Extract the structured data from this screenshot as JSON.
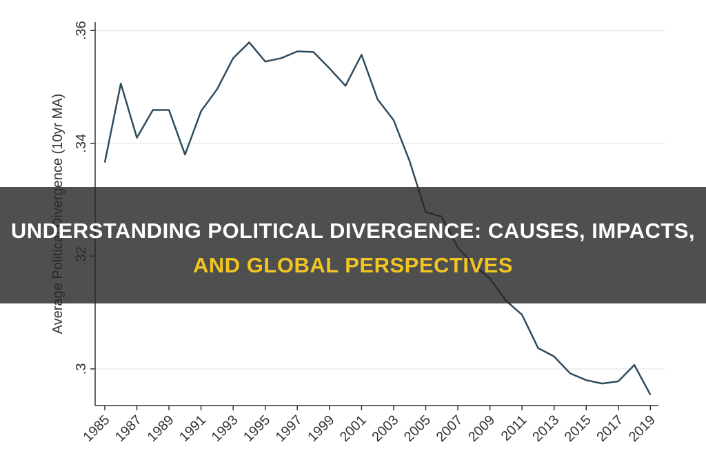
{
  "chart_data": {
    "type": "line",
    "y_label": "Average Political Divergence (10yr MA)",
    "x": [
      1985,
      1986,
      1987,
      1988,
      1989,
      1990,
      1991,
      1992,
      1993,
      1994,
      1995,
      1996,
      1997,
      1998,
      1999,
      2000,
      2001,
      2002,
      2003,
      2004,
      2005,
      2006,
      2007,
      2008,
      2009,
      2010,
      2011,
      2012,
      2013,
      2014,
      2015,
      2016,
      2017,
      2018,
      2019
    ],
    "series": [
      {
        "color": "#2f4b5e",
        "values": [
          0.3366,
          0.3506,
          0.341,
          0.3459,
          0.3459,
          0.338,
          0.3457,
          0.3496,
          0.3551,
          0.3579,
          0.3545,
          0.3551,
          0.3563,
          0.3562,
          0.3533,
          0.3502,
          0.3557,
          0.3478,
          0.3441,
          0.3368,
          0.3278,
          0.327,
          0.3215,
          0.3184,
          0.316,
          0.3121,
          0.3096,
          0.3037,
          0.3022,
          0.2992,
          0.298,
          0.2974,
          0.2978,
          0.3007,
          0.2954
        ]
      }
    ],
    "xlim": [
      1984.4,
      2019.5
    ],
    "xticks": [
      1985,
      1987,
      1989,
      1991,
      1993,
      1995,
      1997,
      1999,
      2001,
      2003,
      2005,
      2007,
      2009,
      2011,
      2013,
      2015,
      2017,
      2019
    ],
    "ylim": [
      0.2935,
      0.3615
    ],
    "yticks": [
      {
        "value": 0.3,
        "label": ".3"
      },
      {
        "value": 0.32,
        "label": ".32"
      },
      {
        "value": 0.34,
        "label": ".34"
      },
      {
        "value": 0.36,
        "label": ".36"
      }
    ],
    "grid": true
  },
  "banner": {
    "line1": "UNDERSTANDING POLITICAL DIVERGENCE: CAUSES, IMPACTS,",
    "line2": "AND GLOBAL PERSPECTIVES"
  }
}
